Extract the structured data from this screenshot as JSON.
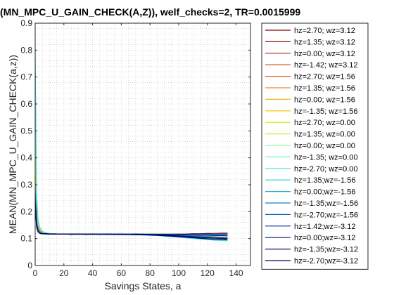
{
  "chart_data": {
    "type": "line",
    "title": "(MN_MPC_U_GAIN_CHECK(A,Z)), welf_checks=2, TR=0.0015999",
    "xlabel": "Savings States, a",
    "ylabel": "MEAN(MN_MPC_U_GAIN_CHECK(a,z))",
    "xlim": [
      0,
      150
    ],
    "ylim": [
      0,
      0.9
    ],
    "xticks": [
      "0",
      "20",
      "40",
      "60",
      "80",
      "100",
      "120",
      "140"
    ],
    "yticks": [
      "0",
      "0.1",
      "0.2",
      "0.3",
      "0.4",
      "0.5",
      "0.6",
      "0.7",
      "0.8",
      "0.9"
    ],
    "grid": "minor-dotted",
    "legend_location": "right-outside",
    "x": [
      0,
      1,
      2,
      3,
      4,
      5,
      6,
      8,
      10,
      15,
      20,
      25,
      30,
      35,
      40,
      45,
      50,
      55,
      60,
      65,
      70,
      75,
      80,
      85,
      90,
      95,
      100,
      105,
      110,
      115,
      120,
      125,
      130,
      134
    ],
    "series": [
      {
        "name": "hz=2.70; wz=3.12",
        "color": "#8b0000",
        "values": [
          0.33,
          0.19,
          0.145,
          0.13,
          0.125,
          0.122,
          0.12,
          0.119,
          0.118,
          0.117,
          0.117,
          0.116,
          0.117,
          0.116,
          0.117,
          0.116,
          0.117,
          0.116,
          0.117,
          0.116,
          0.117,
          0.116,
          0.116,
          0.116,
          0.116,
          0.116,
          0.117,
          0.117,
          0.118,
          0.118,
          0.119,
          0.119,
          0.12,
          0.12
        ]
      },
      {
        "name": "hz=1.35; wz=3.12",
        "color": "#a0160a",
        "values": [
          0.33,
          0.185,
          0.142,
          0.128,
          0.124,
          0.121,
          0.12,
          0.119,
          0.118,
          0.117,
          0.117,
          0.116,
          0.117,
          0.116,
          0.117,
          0.116,
          0.117,
          0.116,
          0.117,
          0.116,
          0.117,
          0.116,
          0.116,
          0.116,
          0.116,
          0.115,
          0.116,
          0.116,
          0.116,
          0.116,
          0.116,
          0.116,
          0.116,
          0.116
        ]
      },
      {
        "name": "hz=0.00; wz=3.12",
        "color": "#b42a10",
        "values": [
          0.33,
          0.18,
          0.14,
          0.127,
          0.123,
          0.121,
          0.12,
          0.119,
          0.118,
          0.117,
          0.117,
          0.116,
          0.117,
          0.116,
          0.117,
          0.116,
          0.117,
          0.116,
          0.117,
          0.116,
          0.117,
          0.116,
          0.116,
          0.115,
          0.115,
          0.115,
          0.115,
          0.114,
          0.114,
          0.113,
          0.113,
          0.112,
          0.112,
          0.111
        ]
      },
      {
        "name": "hz=-1.42; wz=3.12",
        "color": "#c8401a",
        "values": [
          0.33,
          0.175,
          0.138,
          0.126,
          0.122,
          0.12,
          0.119,
          0.118,
          0.118,
          0.117,
          0.117,
          0.116,
          0.117,
          0.116,
          0.117,
          0.116,
          0.117,
          0.116,
          0.116,
          0.116,
          0.116,
          0.116,
          0.115,
          0.115,
          0.114,
          0.113,
          0.112,
          0.111,
          0.11,
          0.108,
          0.107,
          0.105,
          0.104,
          0.102
        ]
      },
      {
        "name": "hz=2.70; wz=1.56",
        "color": "#d85a20",
        "values": [
          0.36,
          0.2,
          0.15,
          0.133,
          0.126,
          0.123,
          0.121,
          0.119,
          0.118,
          0.117,
          0.117,
          0.116,
          0.117,
          0.116,
          0.117,
          0.116,
          0.117,
          0.116,
          0.117,
          0.116,
          0.117,
          0.116,
          0.116,
          0.116,
          0.116,
          0.116,
          0.116,
          0.116,
          0.117,
          0.117,
          0.117,
          0.118,
          0.118,
          0.118
        ]
      },
      {
        "name": "hz=1.35; wz=1.56",
        "color": "#e88a2a",
        "values": [
          0.38,
          0.2,
          0.152,
          0.134,
          0.127,
          0.123,
          0.121,
          0.119,
          0.118,
          0.117,
          0.117,
          0.116,
          0.117,
          0.116,
          0.117,
          0.116,
          0.117,
          0.116,
          0.117,
          0.116,
          0.116,
          0.116,
          0.116,
          0.115,
          0.115,
          0.115,
          0.115,
          0.115,
          0.114,
          0.114,
          0.114,
          0.113,
          0.113,
          0.113
        ]
      },
      {
        "name": "hz=0.00; wz=1.56",
        "color": "#f0b420",
        "values": [
          0.4,
          0.21,
          0.155,
          0.136,
          0.128,
          0.124,
          0.122,
          0.12,
          0.118,
          0.117,
          0.117,
          0.116,
          0.117,
          0.116,
          0.117,
          0.116,
          0.116,
          0.116,
          0.116,
          0.116,
          0.116,
          0.115,
          0.115,
          0.114,
          0.114,
          0.113,
          0.112,
          0.111,
          0.11,
          0.109,
          0.108,
          0.107,
          0.106,
          0.105
        ]
      },
      {
        "name": "hz=-1.35; wz=1.56",
        "color": "#e6c800",
        "values": [
          0.42,
          0.215,
          0.158,
          0.138,
          0.129,
          0.125,
          0.122,
          0.12,
          0.118,
          0.117,
          0.117,
          0.116,
          0.117,
          0.116,
          0.116,
          0.116,
          0.116,
          0.116,
          0.116,
          0.115,
          0.115,
          0.115,
          0.114,
          0.113,
          0.112,
          0.111,
          0.109,
          0.107,
          0.105,
          0.103,
          0.101,
          0.099,
          0.098,
          0.097
        ]
      },
      {
        "name": "hz=2.70; wz=0.00",
        "color": "#d8e400",
        "values": [
          0.5,
          0.23,
          0.16,
          0.14,
          0.13,
          0.125,
          0.122,
          0.12,
          0.118,
          0.117,
          0.117,
          0.116,
          0.117,
          0.116,
          0.117,
          0.116,
          0.117,
          0.116,
          0.117,
          0.116,
          0.117,
          0.116,
          0.116,
          0.116,
          0.116,
          0.116,
          0.116,
          0.116,
          0.116,
          0.116,
          0.116,
          0.116,
          0.116,
          0.116
        ]
      },
      {
        "name": "hz=1.35; wz=0.00",
        "color": "#c0f040",
        "values": [
          0.55,
          0.24,
          0.165,
          0.142,
          0.131,
          0.126,
          0.123,
          0.12,
          0.118,
          0.117,
          0.117,
          0.116,
          0.117,
          0.116,
          0.117,
          0.116,
          0.116,
          0.116,
          0.116,
          0.116,
          0.116,
          0.116,
          0.115,
          0.115,
          0.115,
          0.114,
          0.114,
          0.113,
          0.113,
          0.112,
          0.112,
          0.111,
          0.111,
          0.11
        ]
      },
      {
        "name": "hz=0.00; wz=0.00",
        "color": "#a0f0a0",
        "values": [
          0.6,
          0.25,
          0.168,
          0.144,
          0.132,
          0.127,
          0.123,
          0.12,
          0.118,
          0.117,
          0.117,
          0.116,
          0.117,
          0.116,
          0.116,
          0.116,
          0.116,
          0.116,
          0.116,
          0.115,
          0.115,
          0.115,
          0.114,
          0.113,
          0.112,
          0.111,
          0.11,
          0.109,
          0.107,
          0.106,
          0.104,
          0.103,
          0.102,
          0.101
        ]
      },
      {
        "name": "hz=-1.35; wz=0.00",
        "color": "#78f0c8",
        "values": [
          0.65,
          0.26,
          0.17,
          0.145,
          0.133,
          0.127,
          0.124,
          0.12,
          0.118,
          0.117,
          0.117,
          0.116,
          0.116,
          0.116,
          0.116,
          0.116,
          0.116,
          0.115,
          0.115,
          0.115,
          0.114,
          0.114,
          0.113,
          0.112,
          0.11,
          0.108,
          0.106,
          0.104,
          0.102,
          0.1,
          0.098,
          0.096,
          0.095,
          0.094
        ]
      },
      {
        "name": "hz=-2.70; wz=0.00",
        "color": "#50e0d8",
        "values": [
          0.8,
          0.27,
          0.172,
          0.146,
          0.134,
          0.128,
          0.124,
          0.121,
          0.118,
          0.117,
          0.117,
          0.116,
          0.116,
          0.116,
          0.116,
          0.116,
          0.115,
          0.115,
          0.115,
          0.114,
          0.114,
          0.113,
          0.112,
          0.111,
          0.109,
          0.107,
          0.105,
          0.103,
          0.1,
          0.098,
          0.096,
          0.094,
          0.093,
          0.092
        ]
      },
      {
        "name": "hz=1.35;wz=-1.56",
        "color": "#28c8c8",
        "values": [
          0.3,
          0.17,
          0.135,
          0.125,
          0.121,
          0.12,
          0.119,
          0.118,
          0.118,
          0.117,
          0.117,
          0.116,
          0.117,
          0.116,
          0.117,
          0.116,
          0.117,
          0.116,
          0.117,
          0.116,
          0.117,
          0.116,
          0.116,
          0.116,
          0.116,
          0.116,
          0.116,
          0.116,
          0.116,
          0.116,
          0.116,
          0.116,
          0.116,
          0.116
        ]
      },
      {
        "name": "hz=0.00;wz=-1.56",
        "color": "#20a8d0",
        "values": [
          0.28,
          0.165,
          0.133,
          0.124,
          0.121,
          0.12,
          0.119,
          0.118,
          0.118,
          0.117,
          0.117,
          0.116,
          0.117,
          0.116,
          0.117,
          0.116,
          0.117,
          0.116,
          0.117,
          0.116,
          0.116,
          0.116,
          0.116,
          0.115,
          0.115,
          0.115,
          0.115,
          0.114,
          0.114,
          0.114,
          0.113,
          0.113,
          0.113,
          0.112
        ]
      },
      {
        "name": "hz=-1.35;wz=-1.56",
        "color": "#1880d0",
        "values": [
          0.27,
          0.16,
          0.131,
          0.123,
          0.12,
          0.119,
          0.119,
          0.118,
          0.117,
          0.117,
          0.117,
          0.116,
          0.117,
          0.116,
          0.117,
          0.116,
          0.116,
          0.116,
          0.116,
          0.116,
          0.115,
          0.115,
          0.114,
          0.114,
          0.113,
          0.112,
          0.111,
          0.11,
          0.109,
          0.108,
          0.107,
          0.106,
          0.105,
          0.104
        ]
      },
      {
        "name": "hz=-2.70;wz=-1.56",
        "color": "#1058c0",
        "values": [
          0.26,
          0.155,
          0.13,
          0.122,
          0.12,
          0.119,
          0.118,
          0.118,
          0.117,
          0.117,
          0.117,
          0.116,
          0.117,
          0.116,
          0.116,
          0.116,
          0.116,
          0.116,
          0.116,
          0.115,
          0.115,
          0.114,
          0.113,
          0.112,
          0.111,
          0.11,
          0.108,
          0.107,
          0.105,
          0.104,
          0.102,
          0.101,
          0.1,
          0.099
        ]
      },
      {
        "name": "hz=1.42;wz=-3.12",
        "color": "#0830a0",
        "values": [
          0.25,
          0.15,
          0.128,
          0.121,
          0.119,
          0.119,
          0.118,
          0.118,
          0.117,
          0.117,
          0.117,
          0.116,
          0.117,
          0.116,
          0.117,
          0.116,
          0.117,
          0.116,
          0.117,
          0.116,
          0.117,
          0.116,
          0.116,
          0.116,
          0.116,
          0.116,
          0.116,
          0.116,
          0.117,
          0.117,
          0.117,
          0.117,
          0.117,
          0.117
        ]
      },
      {
        "name": "hz=0.00;wz=-3.12",
        "color": "#061c88",
        "values": [
          0.24,
          0.148,
          0.127,
          0.121,
          0.119,
          0.118,
          0.118,
          0.118,
          0.117,
          0.117,
          0.117,
          0.116,
          0.117,
          0.116,
          0.117,
          0.116,
          0.117,
          0.116,
          0.116,
          0.116,
          0.116,
          0.116,
          0.115,
          0.115,
          0.115,
          0.114,
          0.114,
          0.113,
          0.113,
          0.112,
          0.112,
          0.111,
          0.111,
          0.11
        ]
      },
      {
        "name": "hz=-1.35;wz=-3.12",
        "color": "#040c70",
        "values": [
          0.23,
          0.145,
          0.126,
          0.12,
          0.119,
          0.118,
          0.118,
          0.117,
          0.117,
          0.117,
          0.117,
          0.116,
          0.117,
          0.116,
          0.116,
          0.116,
          0.116,
          0.116,
          0.116,
          0.115,
          0.115,
          0.115,
          0.114,
          0.113,
          0.112,
          0.111,
          0.11,
          0.108,
          0.107,
          0.105,
          0.104,
          0.102,
          0.101,
          0.1
        ]
      },
      {
        "name": "hz=-2.70;wz=-3.12",
        "color": "#000060",
        "values": [
          0.22,
          0.142,
          0.125,
          0.12,
          0.118,
          0.118,
          0.117,
          0.117,
          0.117,
          0.117,
          0.117,
          0.116,
          0.116,
          0.116,
          0.116,
          0.116,
          0.116,
          0.115,
          0.115,
          0.115,
          0.114,
          0.114,
          0.113,
          0.112,
          0.11,
          0.109,
          0.107,
          0.105,
          0.103,
          0.101,
          0.099,
          0.097,
          0.096,
          0.095
        ]
      }
    ]
  }
}
